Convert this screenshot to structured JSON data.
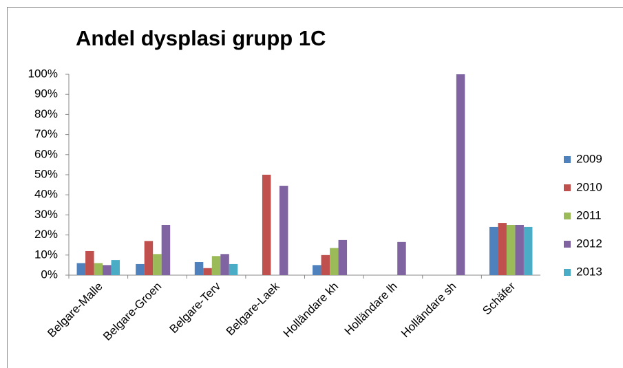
{
  "chart_data": {
    "type": "bar",
    "title": "Andel dysplasi grupp 1C",
    "categories": [
      "Belgare-Malle",
      "Belgare-Groen",
      "Belgare-Terv",
      "Belgare-Laek",
      "Holländare kh",
      "Holländare lh",
      "Holländare sh",
      "Schäfer"
    ],
    "series": [
      {
        "name": "2009",
        "color": "#4f81bd",
        "values": [
          6,
          5.5,
          6.5,
          null,
          5,
          null,
          null,
          24
        ]
      },
      {
        "name": "2010",
        "color": "#c0504d",
        "values": [
          12,
          17,
          3.5,
          50,
          10,
          null,
          null,
          26
        ]
      },
      {
        "name": "2011",
        "color": "#9bbb59",
        "values": [
          6,
          10.5,
          9.5,
          null,
          13.5,
          null,
          null,
          25
        ]
      },
      {
        "name": "2012",
        "color": "#8064a2",
        "values": [
          5,
          25,
          10.5,
          44.5,
          17.5,
          16.5,
          100,
          25
        ]
      },
      {
        "name": "2013",
        "color": "#4bacc6",
        "values": [
          7.5,
          null,
          5.5,
          null,
          null,
          null,
          null,
          24
        ]
      }
    ],
    "ylim": [
      0,
      100
    ],
    "yticks": [
      {
        "value": 0,
        "label": "0%"
      },
      {
        "value": 10,
        "label": "10%"
      },
      {
        "value": 20,
        "label": "20%"
      },
      {
        "value": 30,
        "label": "30%"
      },
      {
        "value": 40,
        "label": "40%"
      },
      {
        "value": 50,
        "label": "50%"
      },
      {
        "value": 60,
        "label": "60%"
      },
      {
        "value": 70,
        "label": "70%"
      },
      {
        "value": 80,
        "label": "80%"
      },
      {
        "value": 90,
        "label": "90%"
      },
      {
        "value": 100,
        "label": "100%"
      }
    ],
    "grid": false,
    "legend": "right"
  }
}
